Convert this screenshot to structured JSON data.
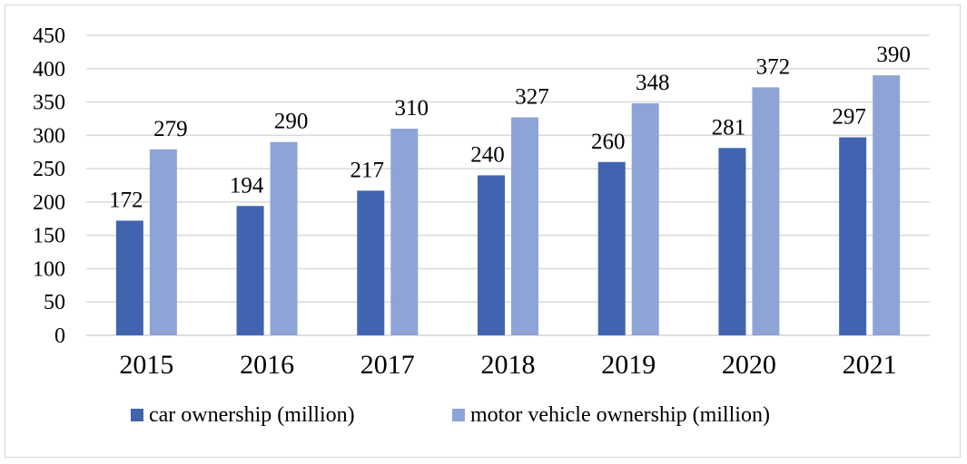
{
  "chart_data": {
    "type": "bar",
    "categories": [
      "2015",
      "2016",
      "2017",
      "2018",
      "2019",
      "2020",
      "2021"
    ],
    "series": [
      {
        "name": "car ownership (million)",
        "values": [
          172,
          194,
          217,
          240,
          260,
          281,
          297
        ],
        "color": "#4064b0"
      },
      {
        "name": "motor vehicle ownership (million)",
        "values": [
          279,
          290,
          310,
          327,
          348,
          372,
          390
        ],
        "color": "#8fa4d6"
      }
    ],
    "ylim": [
      0,
      450
    ],
    "yticks": [
      "0",
      "50",
      "100",
      "150",
      "200",
      "250",
      "300",
      "350",
      "400",
      "450"
    ],
    "grid": true,
    "legend_position": "bottom",
    "data_labels": true,
    "title": "",
    "xlabel": "",
    "ylabel": ""
  }
}
